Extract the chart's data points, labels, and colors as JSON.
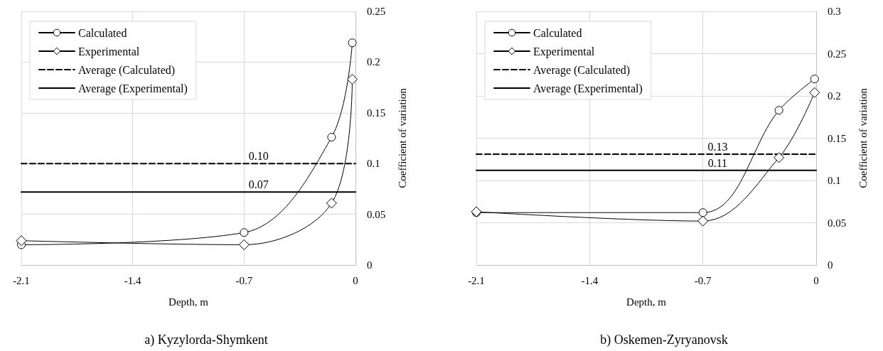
{
  "chart_data": [
    {
      "type": "line",
      "title": "a) Kyzylorda-Shymkent",
      "xlabel": "Depth, m",
      "ylabel": "Coefficient of variation",
      "xlim": [
        -2.1,
        0
      ],
      "xticks": [
        -2.1,
        -1.4,
        -0.7,
        0
      ],
      "ylim": [
        0,
        0.25
      ],
      "yticks": [
        0,
        0.05,
        0.1,
        0.15,
        0.2,
        0.25
      ],
      "grid": true,
      "legend": "top left",
      "series": [
        {
          "name": "Calculated",
          "color": "#000000",
          "marker": "circle",
          "line_style": "solid",
          "x": [
            -2.1,
            -0.7,
            -0.15,
            -0.02
          ],
          "values": [
            0.02,
            0.032,
            0.126,
            0.219
          ]
        },
        {
          "name": "Experimental",
          "color": "#000000",
          "marker": "diamond",
          "line_style": "solid",
          "x": [
            -2.1,
            -0.7,
            -0.15,
            -0.02
          ],
          "values": [
            0.024,
            0.02,
            0.061,
            0.183
          ]
        },
        {
          "name": "Average (Calculated)",
          "color": "#000000",
          "marker": "none",
          "line_style": "dashed",
          "x": [
            -2.1,
            0
          ],
          "values": [
            0.1,
            0.1
          ]
        },
        {
          "name": "Average (Experimental)",
          "color": "#000000",
          "marker": "none",
          "line_style": "solid",
          "x": [
            -2.1,
            0
          ],
          "values": [
            0.072,
            0.072
          ]
        }
      ],
      "annotations": [
        {
          "text": "0.10",
          "y": 0.1
        },
        {
          "text": "0.07",
          "y": 0.072
        }
      ]
    },
    {
      "type": "line",
      "title": "b) Oskemen-Zyryanovsk",
      "xlabel": "Depth, m",
      "ylabel": "Coefficient of variation",
      "xlim": [
        -2.1,
        0
      ],
      "xticks": [
        -2.1,
        -1.4,
        -0.7,
        0
      ],
      "ylim": [
        0,
        0.3
      ],
      "yticks": [
        0,
        0.05,
        0.1,
        0.15,
        0.2,
        0.25,
        0.3
      ],
      "grid": true,
      "legend": "top left",
      "series": [
        {
          "name": "Calculated",
          "color": "#000000",
          "marker": "circle",
          "line_style": "solid",
          "x": [
            -2.1,
            -0.7,
            -0.23,
            -0.01
          ],
          "values": [
            0.062,
            0.062,
            0.183,
            0.22
          ]
        },
        {
          "name": "Experimental",
          "color": "#000000",
          "marker": "diamond",
          "line_style": "solid",
          "x": [
            -2.1,
            -0.7,
            -0.23,
            -0.01
          ],
          "values": [
            0.063,
            0.052,
            0.127,
            0.204
          ]
        },
        {
          "name": "Average (Calculated)",
          "color": "#000000",
          "marker": "none",
          "line_style": "dashed",
          "x": [
            -2.1,
            0
          ],
          "values": [
            0.131,
            0.131
          ]
        },
        {
          "name": "Average (Experimental)",
          "color": "#000000",
          "marker": "none",
          "line_style": "solid",
          "x": [
            -2.1,
            0
          ],
          "values": [
            0.112,
            0.112
          ]
        }
      ],
      "annotations": [
        {
          "text": "0.13",
          "y": 0.131
        },
        {
          "text": "0.11",
          "y": 0.112
        }
      ]
    }
  ]
}
